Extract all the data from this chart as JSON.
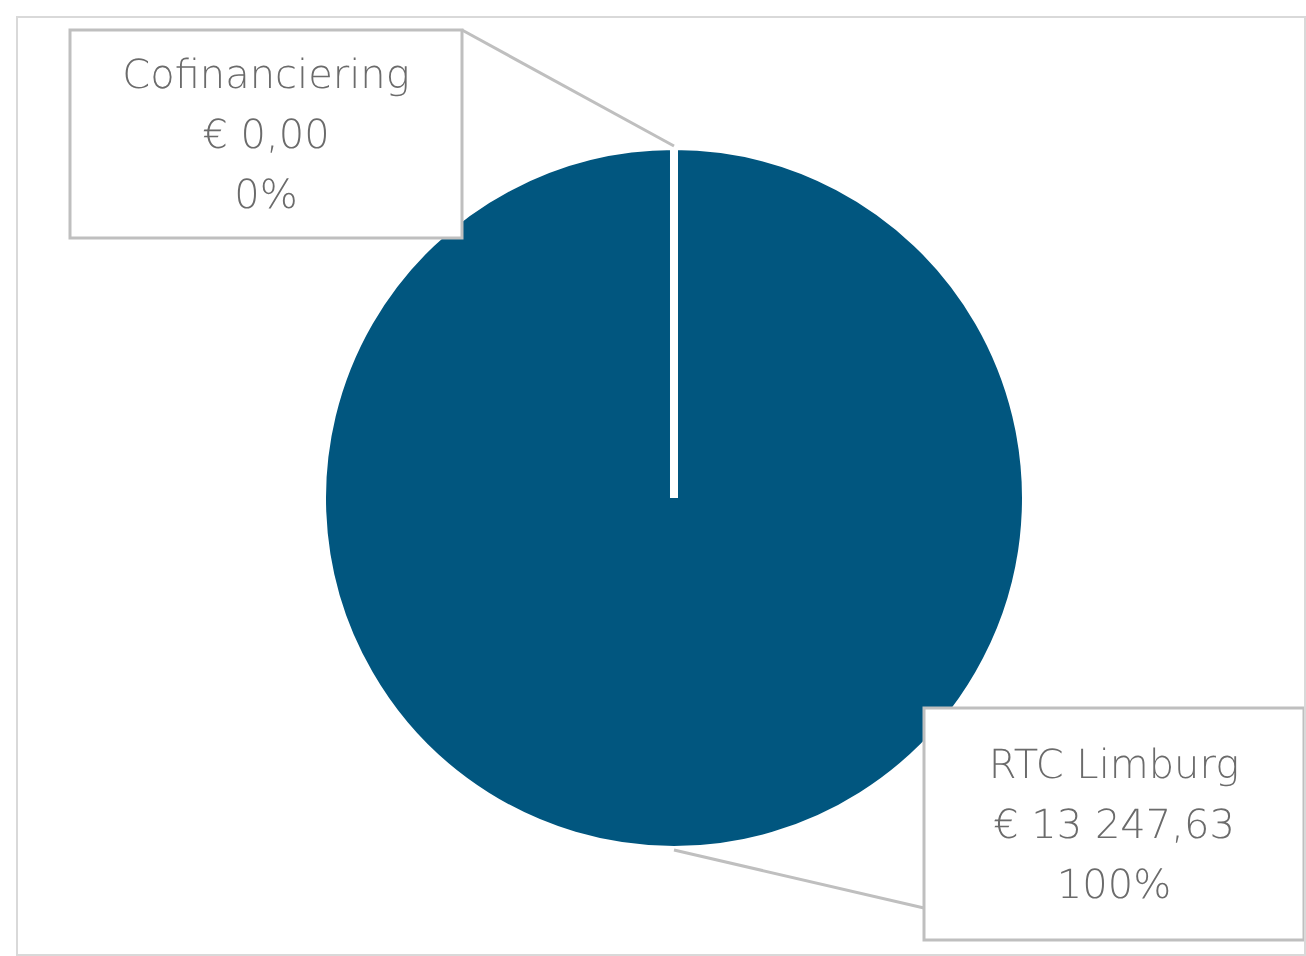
{
  "chart_data": {
    "type": "pie",
    "categories": [
      "Cofinanciering",
      "RTC Limburg"
    ],
    "values": [
      0,
      13247.63
    ],
    "colors": [
      "#a5a5a5",
      "#01567f"
    ],
    "value_labels": [
      "€ 0,00\n0%",
      "€ 13 247,63\n100%"
    ]
  }
}
